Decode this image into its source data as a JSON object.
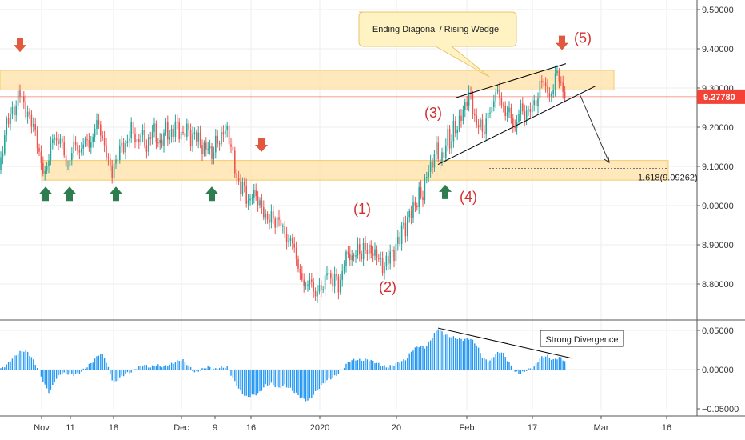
{
  "chart_data": {
    "type": "candlestick",
    "price_axis": {
      "ylim": [
        8.74,
        9.52
      ],
      "ticks": [
        "9.50000",
        "9.40000",
        "9.30000",
        "9.20000",
        "9.10000",
        "9.00000",
        "8.90000",
        "8.80000"
      ]
    },
    "current_price_label": "9.27780",
    "current_price": 9.2778,
    "x_labels": [
      "Nov",
      "11",
      "18",
      "Dec",
      "9",
      "16",
      "2020",
      "20",
      "Feb",
      "17",
      "Mar",
      "16"
    ],
    "macd_axis": {
      "ylim": [
        -0.052,
        0.062
      ],
      "ticks": [
        "0.05000",
        "0.00000",
        "−0.05000"
      ]
    },
    "price_path": [
      [
        0,
        9.09
      ],
      [
        3,
        9.14
      ],
      [
        7,
        9.2
      ],
      [
        12,
        9.23
      ],
      [
        16,
        9.24
      ],
      [
        20,
        9.25
      ],
      [
        24,
        9.3
      ],
      [
        28,
        9.27
      ],
      [
        32,
        9.24
      ],
      [
        36,
        9.23
      ],
      [
        40,
        9.21
      ],
      [
        44,
        9.19
      ],
      [
        48,
        9.14
      ],
      [
        52,
        9.1
      ],
      [
        56,
        9.08
      ],
      [
        60,
        9.11
      ],
      [
        64,
        9.16
      ],
      [
        68,
        9.18
      ],
      [
        72,
        9.15
      ],
      [
        76,
        9.18
      ],
      [
        80,
        9.13
      ],
      [
        84,
        9.09
      ],
      [
        88,
        9.12
      ],
      [
        92,
        9.16
      ],
      [
        96,
        9.15
      ],
      [
        100,
        9.13
      ],
      [
        104,
        9.16
      ],
      [
        108,
        9.17
      ],
      [
        112,
        9.15
      ],
      [
        116,
        9.17
      ],
      [
        120,
        9.22
      ],
      [
        124,
        9.2
      ],
      [
        128,
        9.17
      ],
      [
        132,
        9.14
      ],
      [
        136,
        9.11
      ],
      [
        140,
        9.08
      ],
      [
        144,
        9.11
      ],
      [
        148,
        9.13
      ],
      [
        152,
        9.16
      ],
      [
        156,
        9.14
      ],
      [
        160,
        9.17
      ],
      [
        164,
        9.2
      ],
      [
        168,
        9.18
      ],
      [
        172,
        9.15
      ],
      [
        176,
        9.19
      ],
      [
        180,
        9.17
      ],
      [
        184,
        9.14
      ],
      [
        188,
        9.18
      ],
      [
        192,
        9.2
      ],
      [
        196,
        9.17
      ],
      [
        200,
        9.15
      ],
      [
        204,
        9.18
      ],
      [
        208,
        9.2
      ],
      [
        212,
        9.17
      ],
      [
        216,
        9.19
      ],
      [
        220,
        9.21
      ],
      [
        224,
        9.19
      ],
      [
        228,
        9.17
      ],
      [
        232,
        9.2
      ],
      [
        236,
        9.19
      ],
      [
        240,
        9.16
      ],
      [
        244,
        9.19
      ],
      [
        248,
        9.17
      ],
      [
        252,
        9.15
      ],
      [
        256,
        9.14
      ],
      [
        260,
        9.16
      ],
      [
        264,
        9.12
      ],
      [
        268,
        9.15
      ],
      [
        272,
        9.17
      ],
      [
        276,
        9.16
      ],
      [
        280,
        9.2
      ],
      [
        284,
        9.19
      ],
      [
        288,
        9.16
      ],
      [
        292,
        9.12
      ],
      [
        296,
        9.07
      ],
      [
        300,
        9.04
      ],
      [
        304,
        9.06
      ],
      [
        308,
        9.02
      ],
      [
        312,
        9.0
      ],
      [
        316,
        9.04
      ],
      [
        320,
        9.02
      ],
      [
        324,
        9.01
      ],
      [
        328,
        8.99
      ],
      [
        332,
        8.97
      ],
      [
        336,
        8.96
      ],
      [
        340,
        8.98
      ],
      [
        344,
        8.95
      ],
      [
        348,
        8.97
      ],
      [
        352,
        8.95
      ],
      [
        356,
        8.93
      ],
      [
        360,
        8.9
      ],
      [
        364,
        8.92
      ],
      [
        368,
        8.89
      ],
      [
        372,
        8.85
      ],
      [
        376,
        8.82
      ],
      [
        380,
        8.8
      ],
      [
        384,
        8.79
      ],
      [
        388,
        8.82
      ],
      [
        392,
        8.78
      ],
      [
        396,
        8.77
      ],
      [
        400,
        8.8
      ],
      [
        404,
        8.78
      ],
      [
        408,
        8.84
      ],
      [
        412,
        8.82
      ],
      [
        416,
        8.8
      ],
      [
        420,
        8.83
      ],
      [
        424,
        8.78
      ],
      [
        428,
        8.83
      ],
      [
        432,
        8.87
      ],
      [
        436,
        8.88
      ],
      [
        440,
        8.86
      ],
      [
        444,
        8.88
      ],
      [
        448,
        8.89
      ],
      [
        452,
        8.87
      ],
      [
        456,
        8.9
      ],
      [
        460,
        8.88
      ],
      [
        464,
        8.89
      ],
      [
        468,
        8.87
      ],
      [
        472,
        8.88
      ],
      [
        476,
        8.85
      ],
      [
        480,
        8.84
      ],
      [
        484,
        8.86
      ],
      [
        488,
        8.88
      ],
      [
        492,
        8.87
      ],
      [
        496,
        8.9
      ],
      [
        500,
        8.92
      ],
      [
        504,
        8.95
      ],
      [
        508,
        8.94
      ],
      [
        512,
        8.98
      ],
      [
        516,
        8.99
      ],
      [
        520,
        9.0
      ],
      [
        524,
        9.03
      ],
      [
        528,
        9.02
      ],
      [
        532,
        9.06
      ],
      [
        536,
        9.1
      ],
      [
        540,
        9.09
      ],
      [
        544,
        9.15
      ],
      [
        548,
        9.13
      ],
      [
        552,
        9.11
      ],
      [
        556,
        9.14
      ],
      [
        560,
        9.18
      ],
      [
        564,
        9.15
      ],
      [
        568,
        9.21
      ],
      [
        572,
        9.19
      ],
      [
        576,
        9.23
      ],
      [
        580,
        9.24
      ],
      [
        584,
        9.27
      ],
      [
        588,
        9.29
      ],
      [
        592,
        9.24
      ],
      [
        596,
        9.2
      ],
      [
        600,
        9.22
      ],
      [
        604,
        9.18
      ],
      [
        608,
        9.21
      ],
      [
        612,
        9.25
      ],
      [
        616,
        9.24
      ],
      [
        620,
        9.3
      ],
      [
        624,
        9.28
      ],
      [
        628,
        9.26
      ],
      [
        632,
        9.23
      ],
      [
        636,
        9.25
      ],
      [
        640,
        9.22
      ],
      [
        644,
        9.19
      ],
      [
        648,
        9.23
      ],
      [
        652,
        9.26
      ],
      [
        656,
        9.22
      ],
      [
        660,
        9.25
      ],
      [
        664,
        9.24
      ],
      [
        668,
        9.27
      ],
      [
        672,
        9.25
      ],
      [
        676,
        9.33
      ],
      [
        680,
        9.31
      ],
      [
        684,
        9.3
      ],
      [
        688,
        9.27
      ],
      [
        692,
        9.3
      ],
      [
        696,
        9.35
      ],
      [
        700,
        9.32
      ],
      [
        704,
        9.29
      ],
      [
        708,
        9.278
      ]
    ],
    "macd_path": [
      [
        0,
        0.0
      ],
      [
        8,
        0.006
      ],
      [
        16,
        0.015
      ],
      [
        24,
        0.022
      ],
      [
        32,
        0.025
      ],
      [
        40,
        0.015
      ],
      [
        48,
        0.0
      ],
      [
        56,
        -0.02
      ],
      [
        62,
        -0.03
      ],
      [
        68,
        -0.015
      ],
      [
        76,
        -0.005
      ],
      [
        84,
        -0.005
      ],
      [
        92,
        -0.007
      ],
      [
        100,
        -0.004
      ],
      [
        108,
        0.003
      ],
      [
        116,
        0.01
      ],
      [
        124,
        0.02
      ],
      [
        130,
        0.018
      ],
      [
        136,
        0.0
      ],
      [
        142,
        -0.018
      ],
      [
        148,
        -0.012
      ],
      [
        156,
        -0.006
      ],
      [
        164,
        -0.003
      ],
      [
        172,
        0.003
      ],
      [
        180,
        0.006
      ],
      [
        188,
        0.003
      ],
      [
        196,
        0.006
      ],
      [
        204,
        0.004
      ],
      [
        212,
        0.006
      ],
      [
        220,
        0.01
      ],
      [
        228,
        0.013
      ],
      [
        236,
        0.005
      ],
      [
        244,
        -0.004
      ],
      [
        252,
        0.0
      ],
      [
        260,
        0.004
      ],
      [
        268,
        0.0
      ],
      [
        276,
        0.003
      ],
      [
        284,
        0.003
      ],
      [
        292,
        -0.012
      ],
      [
        300,
        -0.027
      ],
      [
        308,
        -0.035
      ],
      [
        316,
        -0.033
      ],
      [
        324,
        -0.03
      ],
      [
        332,
        -0.02
      ],
      [
        340,
        -0.018
      ],
      [
        348,
        -0.024
      ],
      [
        356,
        -0.02
      ],
      [
        364,
        -0.025
      ],
      [
        372,
        -0.032
      ],
      [
        380,
        -0.038
      ],
      [
        386,
        -0.04
      ],
      [
        392,
        -0.032
      ],
      [
        398,
        -0.025
      ],
      [
        404,
        -0.018
      ],
      [
        412,
        -0.012
      ],
      [
        420,
        -0.008
      ],
      [
        428,
        0.0
      ],
      [
        436,
        0.01
      ],
      [
        444,
        0.013
      ],
      [
        452,
        0.012
      ],
      [
        460,
        0.013
      ],
      [
        468,
        0.01
      ],
      [
        476,
        0.006
      ],
      [
        484,
        0.003
      ],
      [
        492,
        0.006
      ],
      [
        500,
        0.01
      ],
      [
        508,
        0.013
      ],
      [
        516,
        0.025
      ],
      [
        524,
        0.03
      ],
      [
        532,
        0.028
      ],
      [
        540,
        0.04
      ],
      [
        548,
        0.053
      ],
      [
        556,
        0.045
      ],
      [
        564,
        0.042
      ],
      [
        572,
        0.04
      ],
      [
        580,
        0.038
      ],
      [
        588,
        0.04
      ],
      [
        596,
        0.032
      ],
      [
        604,
        0.015
      ],
      [
        612,
        0.01
      ],
      [
        620,
        0.02
      ],
      [
        628,
        0.023
      ],
      [
        636,
        0.01
      ],
      [
        644,
        -0.003
      ],
      [
        652,
        -0.005
      ],
      [
        660,
        0.0
      ],
      [
        668,
        0.003
      ],
      [
        676,
        0.015
      ],
      [
        684,
        0.018
      ],
      [
        692,
        0.012
      ],
      [
        700,
        0.016
      ],
      [
        708,
        0.01
      ]
    ],
    "resistance_zone": [
      9.295,
      9.345
    ],
    "support_zone": [
      9.065,
      9.115
    ],
    "fib_label": "1.618(9.09262)",
    "fib_level": 9.095,
    "wedge_upper": [
      [
        570,
        9.275
      ],
      [
        708,
        9.362
      ]
    ],
    "wedge_lower": [
      [
        548,
        9.105
      ],
      [
        745,
        9.305
      ]
    ],
    "projection_arrow": [
      [
        725,
        9.285
      ],
      [
        762,
        9.11
      ]
    ],
    "macd_trendline": [
      [
        548,
        0.053
      ],
      [
        715,
        0.0145
      ]
    ],
    "wave_labels": [
      {
        "text": "(1)",
        "x": 453,
        "y": 8.98
      },
      {
        "text": "(2)",
        "x": 485,
        "y": 8.78
      },
      {
        "text": "(3)",
        "x": 542,
        "y": 9.225
      },
      {
        "text": "(4)",
        "x": 586,
        "y": 9.01
      },
      {
        "text": "(5)",
        "x": 729,
        "y": 9.415
      }
    ],
    "down_arrows": [
      [
        25,
        9.41
      ],
      [
        327,
        9.155
      ],
      [
        703,
        9.415
      ]
    ],
    "up_arrows": [
      [
        57,
        9.03
      ],
      [
        87,
        9.03
      ],
      [
        145,
        9.03
      ],
      [
        265,
        9.03
      ],
      [
        557,
        9.035
      ]
    ],
    "annotations": {
      "wedge_callout": "Ending Diagonal / Rising Wedge",
      "divergence": "Strong Divergence"
    },
    "colors": {
      "up_candle": "#26a69a",
      "down_candle": "#ef5350",
      "macd_bar": "#2196f3",
      "zone": "#ffe0a0",
      "arrow_up": "#2e7d4f",
      "arrow_down": "#e2583e",
      "price_line": "#f44336",
      "wave_text": "#d32f2f"
    }
  }
}
